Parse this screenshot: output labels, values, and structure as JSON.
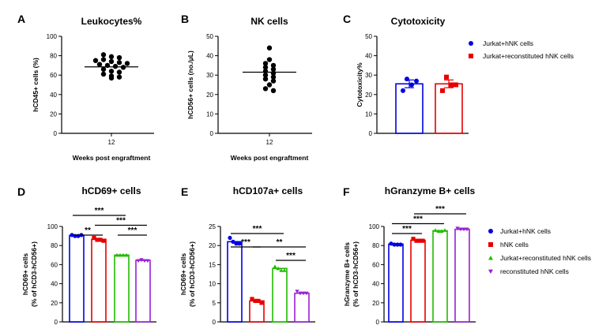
{
  "colors": {
    "blue": "#0000e6",
    "red": "#e60000",
    "green": "#22bb00",
    "purple": "#9a1fd6",
    "black": "#000000"
  },
  "chart_data": [
    {
      "panel": "A",
      "type": "scatter",
      "title": "Leukocytes%",
      "ylabel": "hCD45+ cells (%)",
      "xlabel": "Weeks post engraftment",
      "ylim": [
        0,
        100
      ],
      "yticks": [
        0,
        20,
        40,
        60,
        80,
        100
      ],
      "categories": [
        "12"
      ],
      "series": [
        {
          "values": [
            81,
            79,
            78,
            75,
            76,
            74,
            73,
            72,
            71,
            70,
            69,
            68,
            66,
            64,
            63,
            61,
            59,
            58,
            57
          ]
        }
      ],
      "mean": 68.5
    },
    {
      "panel": "B",
      "type": "scatter",
      "title": "NK cells",
      "ylabel": "hCD56+ cells (no./μL)",
      "xlabel": "Weeks post engraftment",
      "ylim": [
        0,
        50
      ],
      "yticks": [
        0,
        10,
        20,
        30,
        40,
        50
      ],
      "categories": [
        "12"
      ],
      "series": [
        {
          "values": [
            44,
            38,
            36,
            35,
            34,
            33,
            32,
            31,
            30,
            29,
            28,
            27,
            25,
            23,
            22
          ]
        }
      ],
      "mean": 31.5
    },
    {
      "panel": "C",
      "type": "bar",
      "title": "Cytotoxicity",
      "ylabel": "Cytotoxicity%",
      "ylim": [
        0,
        50
      ],
      "yticks": [
        0,
        10,
        20,
        30,
        40,
        50
      ],
      "series": [
        {
          "name": "Jurkat+hNK cells",
          "value": 25.5,
          "sem": 2.0,
          "points": [
            28,
            27,
            25,
            22
          ]
        },
        {
          "name": "Jurkat+reconstituted hNK cells",
          "value": 25.5,
          "sem": 2.0,
          "points": [
            29,
            25,
            25,
            22
          ]
        }
      ]
    },
    {
      "panel": "D",
      "type": "bar",
      "title": "hCD69+ cells",
      "ylabel": [
        "hCD69+ cells",
        "(% of hCD3-hCD56+)"
      ],
      "ylim": [
        0,
        100
      ],
      "yticks": [
        0,
        20,
        40,
        60,
        80,
        100
      ],
      "series": [
        {
          "value": 90.5,
          "points": [
            91,
            90,
            90,
            91
          ]
        },
        {
          "value": 86.5,
          "points": [
            88,
            86,
            86,
            85
          ]
        },
        {
          "value": 70,
          "points": [
            70,
            70,
            70,
            70
          ]
        },
        {
          "value": 64.5,
          "points": [
            64,
            65,
            64,
            64
          ]
        }
      ],
      "significance": [
        {
          "from": 0,
          "to": 2,
          "label": "***",
          "level": 3
        },
        {
          "from": 0,
          "to": 1,
          "label": "**",
          "level": 1
        },
        {
          "from": 1,
          "to": 3,
          "label": "***",
          "level": 2
        },
        {
          "from": 2,
          "to": 3,
          "label": "***",
          "level": 1
        }
      ]
    },
    {
      "panel": "E",
      "type": "bar",
      "title": "hCD107a+ cells",
      "ylabel": [
        "hCD69+ cells",
        "(% of hCD3-hCD56+)"
      ],
      "ylim": [
        0,
        25
      ],
      "yticks": [
        0,
        5,
        10,
        15,
        20,
        25
      ],
      "series": [
        {
          "value": 21,
          "points": [
            22,
            21,
            20.5,
            20.5
          ]
        },
        {
          "value": 5.5,
          "points": [
            6,
            5.5,
            5.5,
            5
          ]
        },
        {
          "value": 14,
          "points": [
            14.5,
            14,
            13.5,
            13.5
          ]
        },
        {
          "value": 7.5,
          "points": [
            8,
            7.5,
            7.5,
            7.5
          ]
        }
      ],
      "significance": [
        {
          "from": 0,
          "to": 2,
          "label": "***",
          "level": 3
        },
        {
          "from": 0,
          "to": 1,
          "label": "***",
          "level": 2
        },
        {
          "from": 1,
          "to": 3,
          "label": "**",
          "level": 2
        },
        {
          "from": 2,
          "to": 3,
          "label": "***",
          "level": 1
        }
      ]
    },
    {
      "panel": "F",
      "type": "bar",
      "title": "hGranzyme B+ cells",
      "ylabel": [
        "hGranzyme B+ cells",
        "(% of hCD3-hCD56+)"
      ],
      "ylim": [
        0,
        100
      ],
      "yticks": [
        0,
        20,
        40,
        60,
        80,
        100
      ],
      "series": [
        {
          "name": "Jurkat+hNK cells",
          "value": 81.5,
          "points": [
            82,
            81,
            81,
            81
          ]
        },
        {
          "name": "hNK cells",
          "value": 85.5,
          "points": [
            87,
            85,
            85,
            85
          ]
        },
        {
          "name": "Jurkat+reconstituted hNK cells",
          "value": 95.5,
          "points": [
            96,
            95,
            95,
            96
          ]
        },
        {
          "name": "reconstituted hNK cells",
          "value": 97,
          "points": [
            98,
            97,
            97,
            97
          ]
        }
      ],
      "significance": [
        {
          "from": 0,
          "to": 1,
          "label": "***",
          "level": 1
        },
        {
          "from": 0,
          "to": 2,
          "label": "***",
          "level": 2
        },
        {
          "from": 1,
          "to": 3,
          "label": "***",
          "level": 3
        }
      ]
    }
  ]
}
